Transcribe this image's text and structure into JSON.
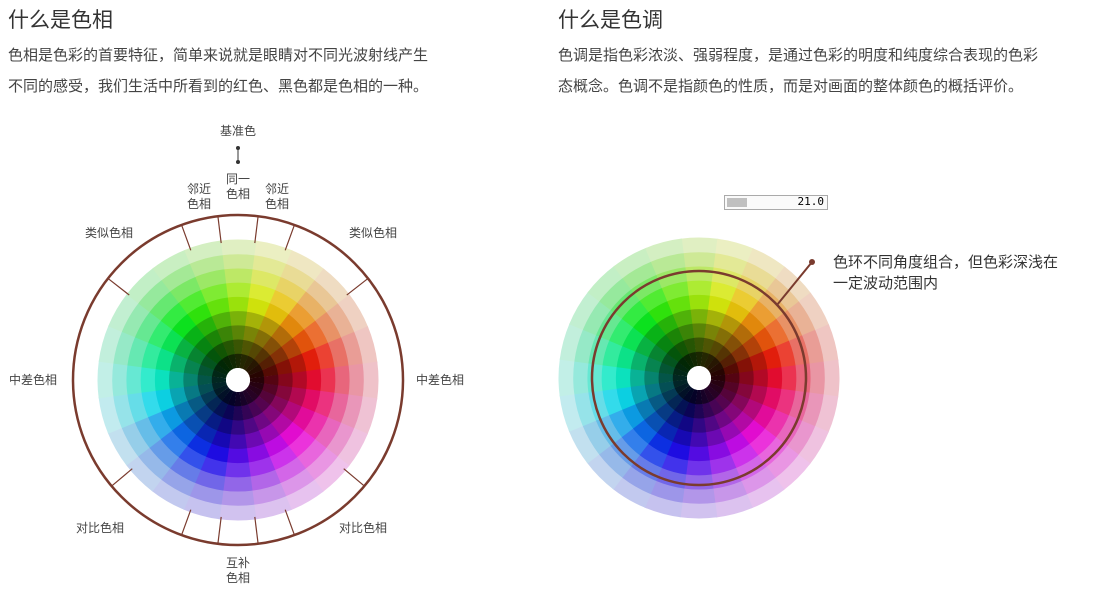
{
  "hue": {
    "title": "什么是色相",
    "desc_line1": "色相是色彩的首要特征，简单来说就是眼睛对不同光波射线产生",
    "desc_line2": "不同的感受，我们生活中所看到的红色、黑色都是色相的一种。",
    "labels": {
      "base": "基准色",
      "same": [
        "同一",
        "色相"
      ],
      "adjacent": [
        "邻近",
        "色相"
      ],
      "similar": "类似色相",
      "medium": "中差色相",
      "contrast": "对比色相",
      "complement": [
        "互补",
        "色相"
      ]
    }
  },
  "tone": {
    "title": "什么是色调",
    "desc_line1": "色调是指色彩浓淡、强弱程度，是通过色彩的明度和纯度综合表现的色彩",
    "desc_line2": "态概念。色调不是指颜色的性质，而是对画面的整体颜色的概括评价。",
    "progress": {
      "value": "21.0",
      "fill_percent": 20
    },
    "annotation": [
      "色环不同角度组合，但色彩深浅在",
      "一定波动范围内"
    ]
  },
  "colors": {
    "ring": "#7a3b2e",
    "text": "#333333"
  }
}
